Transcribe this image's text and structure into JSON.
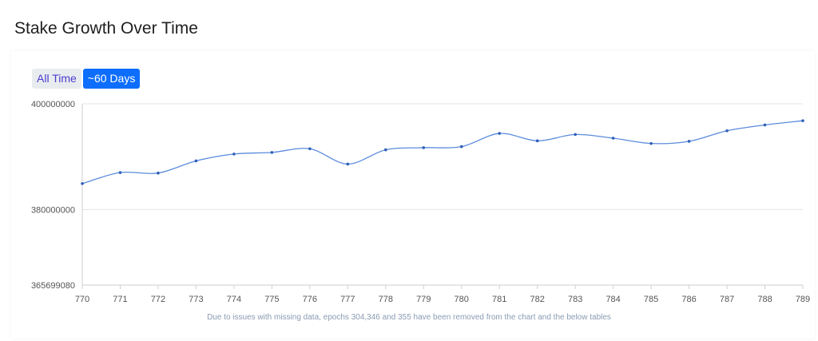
{
  "page": {
    "title": "Stake Growth Over Time"
  },
  "controls": {
    "all_time_label": "All Time",
    "sixty_days_label": "~60 Days",
    "active": "~60 Days"
  },
  "colors": {
    "line": "#5b8bdc",
    "point": "#2f5fb8",
    "grid": "#e6e6e6",
    "active_button": "#0d6efd"
  },
  "footnote": "Due to issues with missing data, epochs 304,346 and 355 have been removed from the chart and the below tables",
  "chart_data": {
    "type": "line",
    "title": "",
    "xlabel": "",
    "ylabel": "",
    "x": [
      770,
      771,
      772,
      773,
      774,
      775,
      776,
      777,
      778,
      779,
      780,
      781,
      782,
      783,
      784,
      785,
      786,
      787,
      788,
      789
    ],
    "series": [
      {
        "values": [
          384900000,
          387000000,
          386900000,
          389200000,
          390500000,
          390800000,
          391500000,
          388600000,
          391300000,
          391700000,
          391900000,
          394400000,
          393000000,
          394200000,
          393500000,
          392500000,
          392900000,
          394900000,
          396000000,
          396800000
        ]
      }
    ],
    "ylim": [
      365699080,
      400000000
    ],
    "y_ticks": [
      "400000000",
      "380000000",
      "365699080"
    ],
    "y_tick_values": [
      400000000,
      380000000,
      365699080
    ],
    "grid": true
  }
}
